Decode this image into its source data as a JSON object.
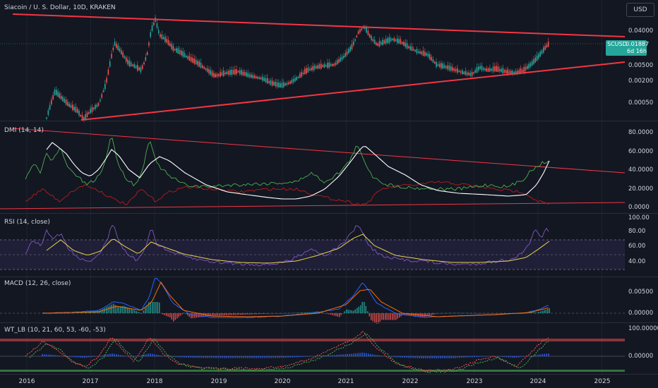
{
  "main_pane": {
    "title": "Siacoin / U. S. Dollar, 10D, KRAKEN",
    "currency_button": "USD",
    "price_tag": {
      "symbol": "SCUSD",
      "value": "0.01887",
      "countdown": "6d 16h"
    },
    "y_ticks": [
      "0.04000",
      "0.00500",
      "0.00200",
      "0.00050"
    ]
  },
  "dmi_pane": {
    "title": "DMI (14, 14)",
    "y_ticks": [
      "80.0000",
      "60.0000",
      "40.0000",
      "20.0000",
      "0.0000"
    ]
  },
  "rsi_pane": {
    "title": "RSI (14, close)",
    "y_ticks": [
      "100.00",
      "80.00",
      "60.00",
      "40.00"
    ]
  },
  "macd_pane": {
    "title": "MACD (12, 26, close)",
    "y_ticks": [
      "0.00500",
      "0.00000"
    ]
  },
  "wt_pane": {
    "title": "WT_LB (10, 21, 60, 53, -60, -53)",
    "y_ticks": [
      "100.00000",
      "0.00000"
    ]
  },
  "x_axis": {
    "labels": [
      "2016",
      "2017",
      "2018",
      "2019",
      "2020",
      "2021",
      "2022",
      "2023",
      "2024",
      "2025"
    ]
  },
  "colors": {
    "background": "#131722",
    "up_candle": "#26a69a",
    "down_candle": "#ef5350",
    "trendline": "#f23645",
    "dmi_adx": "#ffffff",
    "dmi_plus": "#4caf50",
    "dmi_minus": "#b71c1c",
    "rsi_line": "#7e57c2",
    "rsi_ma": "#e8d44d",
    "macd_line": "#2962ff",
    "signal_line": "#ff6d00",
    "wt_red": "#ff5252",
    "wt_green": "#4caf50"
  }
}
